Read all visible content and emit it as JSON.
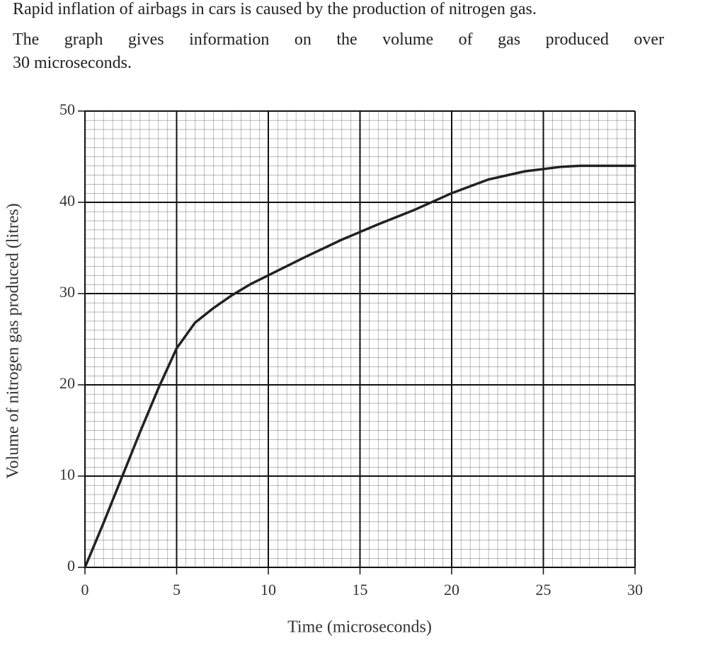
{
  "intro": "Rapid inflation of airbags in cars is caused by the production of nitrogen gas.",
  "paragraph_lines": [
    "The graph gives information on the volume of gas produced over",
    "30 microseconds."
  ],
  "chart_data": {
    "type": "line",
    "x_label": "Time (microseconds)",
    "y_label": "Volume of nitrogen gas produced (litres)",
    "x": [
      0,
      1,
      2,
      3,
      4,
      5,
      6,
      7,
      8,
      9,
      10,
      12,
      14,
      16,
      18,
      20,
      22,
      24,
      26,
      27,
      28,
      30
    ],
    "values": [
      0,
      4.8,
      9.8,
      14.8,
      19.6,
      24,
      26.8,
      28.4,
      29.8,
      31,
      32,
      34,
      35.9,
      37.6,
      39.2,
      41,
      42.5,
      43.4,
      43.9,
      44,
      44,
      44
    ],
    "color": "#222222",
    "xlim": [
      0,
      30
    ],
    "xticks": [
      0,
      5,
      10,
      15,
      20,
      25,
      30
    ],
    "ylim": [
      0,
      50
    ],
    "yticks": [
      0,
      10,
      20,
      30,
      40,
      50
    ],
    "grid": true
  }
}
